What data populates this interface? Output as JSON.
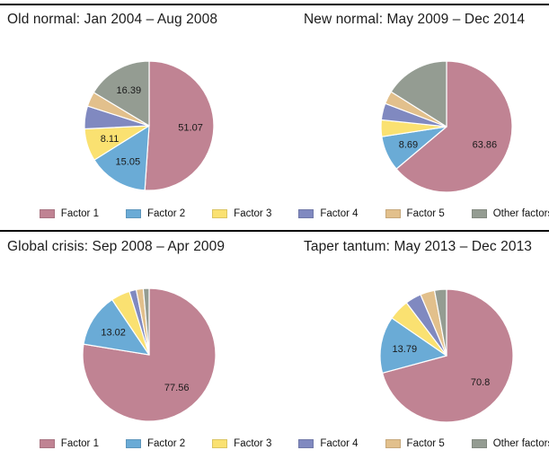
{
  "page": {
    "background": "#ffffff",
    "rule_color": "#000000"
  },
  "titles": [
    "Old normal: Jan 2004 – Aug 2008",
    "New normal: May 2009 – Dec 2014",
    "Global crisis: Sep 2008 – Apr 2009",
    "Taper tantum: May 2013 – Dec 2013"
  ],
  "legend": {
    "items": [
      {
        "label": "Factor 1",
        "color": "#c08393"
      },
      {
        "label": "Factor 2",
        "color": "#6aabd6"
      },
      {
        "label": "Factor 3",
        "color": "#fae171"
      },
      {
        "label": "Factor 4",
        "color": "#8089c0"
      },
      {
        "label": "Factor 5",
        "color": "#e2c08c"
      },
      {
        "label": "Other factors",
        "color": "#949c92"
      }
    ]
  },
  "chart_data": [
    {
      "type": "pie",
      "title": "Old normal: Jan 2004 – Aug 2008",
      "unit": "percent",
      "start_angle_deg": 0,
      "direction": "clockwise",
      "slices": [
        {
          "name": "Factor 1",
          "value": 51.07,
          "label": "51.07"
        },
        {
          "name": "Factor 2",
          "value": 15.05,
          "label": "15.05"
        },
        {
          "name": "Factor 3",
          "value": 8.11,
          "label": "8.11"
        },
        {
          "name": "Factor 4",
          "value": 5.7,
          "label": null
        },
        {
          "name": "Factor 5",
          "value": 3.68,
          "label": null
        },
        {
          "name": "Other factors",
          "value": 16.39,
          "label": "16.39"
        }
      ]
    },
    {
      "type": "pie",
      "title": "New normal: May 2009 – Dec 2014",
      "unit": "percent",
      "start_angle_deg": 0,
      "direction": "clockwise",
      "slices": [
        {
          "name": "Factor 1",
          "value": 63.86,
          "label": "63.86"
        },
        {
          "name": "Factor 2",
          "value": 8.69,
          "label": "8.69"
        },
        {
          "name": "Factor 3",
          "value": 4.1,
          "label": null
        },
        {
          "name": "Factor 4",
          "value": 4.1,
          "label": null
        },
        {
          "name": "Factor 5",
          "value": 3.2,
          "label": null
        },
        {
          "name": "Other factors",
          "value": 16.05,
          "label": null
        }
      ]
    },
    {
      "type": "pie",
      "title": "Global crisis: Sep 2008 – Apr 2009",
      "unit": "percent",
      "start_angle_deg": 0,
      "direction": "clockwise",
      "slices": [
        {
          "name": "Factor 1",
          "value": 77.56,
          "label": "77.56"
        },
        {
          "name": "Factor 2",
          "value": 13.02,
          "label": "13.02"
        },
        {
          "name": "Factor 3",
          "value": 4.6,
          "label": null
        },
        {
          "name": "Factor 4",
          "value": 1.7,
          "label": null
        },
        {
          "name": "Factor 5",
          "value": 1.7,
          "label": null
        },
        {
          "name": "Other factors",
          "value": 1.42,
          "label": null
        }
      ]
    },
    {
      "type": "pie",
      "title": "Taper tantum: May 2013 – Dec 2013",
      "unit": "percent",
      "start_angle_deg": 0,
      "direction": "clockwise",
      "slices": [
        {
          "name": "Factor 1",
          "value": 70.8,
          "label": "70.8"
        },
        {
          "name": "Factor 2",
          "value": 13.79,
          "label": "13.79"
        },
        {
          "name": "Factor 3",
          "value": 5.1,
          "label": null
        },
        {
          "name": "Factor 4",
          "value": 3.9,
          "label": null
        },
        {
          "name": "Factor 5",
          "value": 3.5,
          "label": null
        },
        {
          "name": "Other factors",
          "value": 2.91,
          "label": null
        }
      ]
    }
  ]
}
